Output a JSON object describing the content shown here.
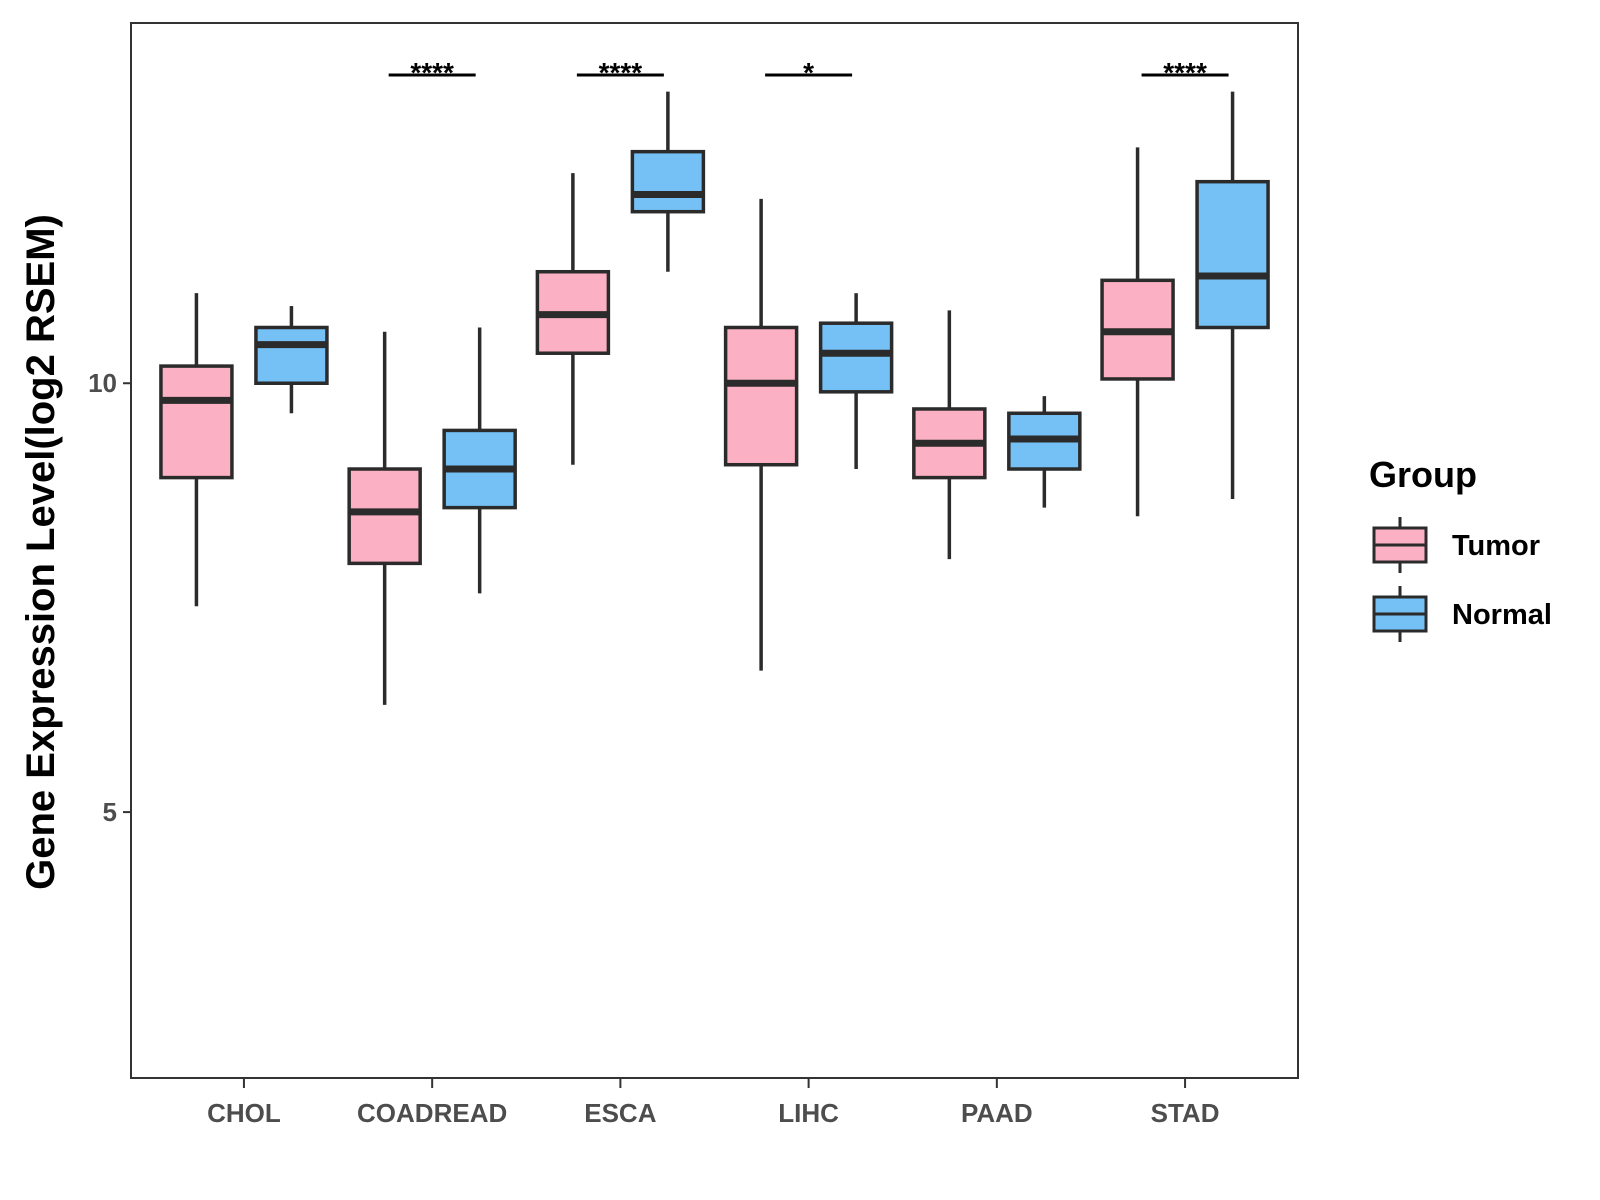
{
  "chart_data": {
    "type": "box",
    "title": "",
    "xlabel": "",
    "ylabel": "Gene Expression Level(log2 RSEM)",
    "ylim": [
      1.9,
      14.2
    ],
    "yticks": [
      5,
      10
    ],
    "ytick_labels": [
      "5",
      "10"
    ],
    "categories": [
      "CHOL",
      "COADREAD",
      "ESCA",
      "LIHC",
      "PAAD",
      "STAD"
    ],
    "legend": {
      "title": "Group",
      "position": "right",
      "entries": [
        "Tumor",
        "Normal"
      ]
    },
    "series": [
      {
        "name": "Tumor",
        "color": "#FBB1C3",
        "boxes": [
          {
            "whisker_low": 7.4,
            "q1": 8.9,
            "median": 9.8,
            "q3": 10.2,
            "whisker_high": 11.05
          },
          {
            "whisker_low": 6.25,
            "q1": 7.9,
            "median": 8.5,
            "q3": 9.0,
            "whisker_high": 10.6
          },
          {
            "whisker_low": 9.05,
            "q1": 10.35,
            "median": 10.8,
            "q3": 11.3,
            "whisker_high": 12.45
          },
          {
            "whisker_low": 6.65,
            "q1": 9.05,
            "median": 10.0,
            "q3": 10.65,
            "whisker_high": 12.15
          },
          {
            "whisker_low": 7.95,
            "q1": 8.9,
            "median": 9.3,
            "q3": 9.7,
            "whisker_high": 10.85
          },
          {
            "whisker_low": 8.45,
            "q1": 10.05,
            "median": 10.6,
            "q3": 11.2,
            "whisker_high": 12.75
          }
        ]
      },
      {
        "name": "Normal",
        "color": "#75C1F6",
        "boxes": [
          {
            "whisker_low": 9.65,
            "q1": 10.0,
            "median": 10.45,
            "q3": 10.65,
            "whisker_high": 10.9
          },
          {
            "whisker_low": 7.55,
            "q1": 8.55,
            "median": 9.0,
            "q3": 9.45,
            "whisker_high": 10.65
          },
          {
            "whisker_low": 11.3,
            "q1": 12.0,
            "median": 12.2,
            "q3": 12.7,
            "whisker_high": 13.4
          },
          {
            "whisker_low": 9.0,
            "q1": 9.9,
            "median": 10.35,
            "q3": 10.7,
            "whisker_high": 11.05
          },
          {
            "whisker_low": 8.55,
            "q1": 9.0,
            "median": 9.35,
            "q3": 9.65,
            "whisker_high": 9.85
          },
          {
            "whisker_low": 8.65,
            "q1": 10.65,
            "median": 11.25,
            "q3": 12.35,
            "whisker_high": 13.4
          }
        ]
      }
    ],
    "significance": [
      {
        "category": "COADREAD",
        "label": "****"
      },
      {
        "category": "ESCA",
        "label": "****"
      },
      {
        "category": "LIHC",
        "label": "*"
      },
      {
        "category": "STAD",
        "label": "****"
      }
    ]
  }
}
